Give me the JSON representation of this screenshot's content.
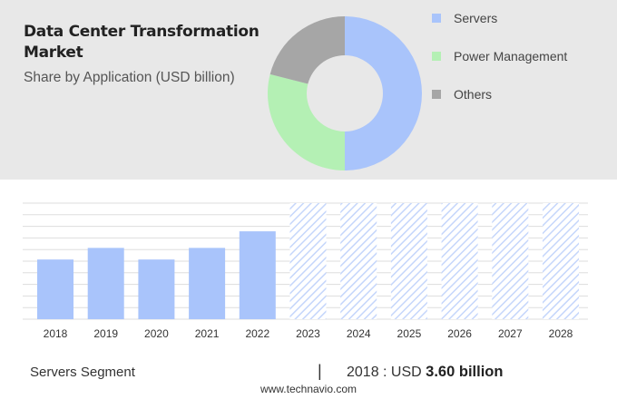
{
  "title": "Data Center Transformation Market",
  "subtitle": "Share by Application (USD billion)",
  "colors": {
    "top_panel": "#e8e8e8",
    "bar": "#a9c4fb",
    "forecast_hatch": "#c5d6fb",
    "grid": "#dddddd"
  },
  "chart_data": [
    {
      "type": "pie",
      "donut": true,
      "title": "Share by Application (USD billion)",
      "legend_position": "right",
      "slices": [
        {
          "label": "Servers",
          "value": 50,
          "color": "#a9c4fb"
        },
        {
          "label": "Power Management",
          "value": 29,
          "color": "#b4f0b4"
        },
        {
          "label": "Others",
          "value": 21,
          "color": "#a6a6a6"
        }
      ]
    },
    {
      "type": "bar",
      "categories": [
        "2018",
        "2019",
        "2020",
        "2021",
        "2022",
        "2023",
        "2024",
        "2025",
        "2026",
        "2027",
        "2028"
      ],
      "series": [
        {
          "values": [
            3.6,
            4.3,
            3.6,
            4.3,
            5.3,
            null,
            null,
            null,
            null,
            null,
            null
          ]
        }
      ],
      "forecast_categories": [
        "2023",
        "2024",
        "2025",
        "2026",
        "2027",
        "2028"
      ],
      "ylim": [
        0,
        7
      ],
      "grid": true
    }
  ],
  "footer": {
    "segment": "Servers Segment",
    "divider": "|",
    "year_label": "2018 : USD",
    "value": "3.60 billion"
  },
  "source": "www.technavio.com"
}
